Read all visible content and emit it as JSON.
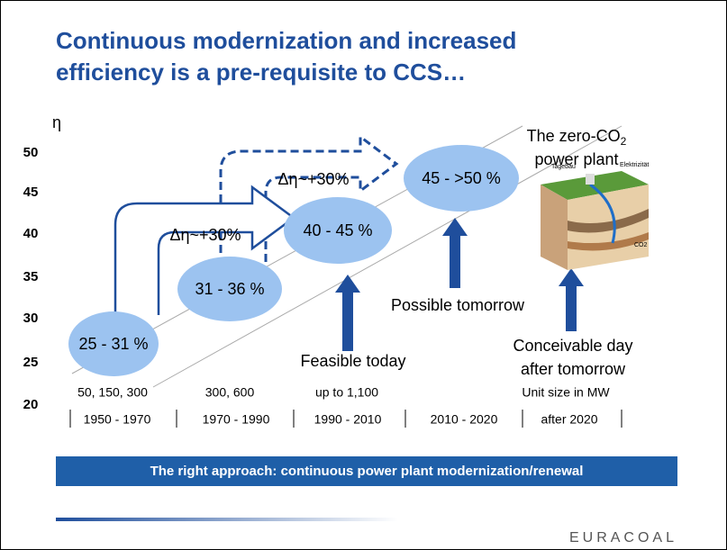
{
  "header": {
    "title": [
      "Continuous modernization and increased",
      "efficiency is a pre-requisite to CCS…"
    ]
  },
  "axis": {
    "label": "η",
    "ticks": [
      "50",
      "45",
      "40",
      "35",
      "30",
      "25",
      "20"
    ]
  },
  "stages": [
    {
      "efficiency": "25 - 31 %",
      "unit_size": "50, 150, 300",
      "period": "1950 - 1970"
    },
    {
      "efficiency": "31 - 36 %",
      "unit_size": "300, 600",
      "period": "1970 - 1990"
    },
    {
      "efficiency": "40 - 45 %",
      "unit_size": "up to 1,100",
      "period": "1990 - 2010"
    },
    {
      "efficiency": "45 - >50 %",
      "period": "2010 - 2020"
    },
    {
      "unit_size": "Unit size in MW",
      "period": "after 2020"
    }
  ],
  "gains": [
    "Δη~+30%",
    "Δη~+30%"
  ],
  "outlooks": [
    "Feasible today",
    "Possible tomorrow",
    [
      "Conceivable day",
      "after tomorrow"
    ]
  ],
  "zero_co2": {
    "line1": "The zero-CO",
    "subscript": "2",
    "line2": "power plant",
    "labels": [
      "Tagebau",
      "Elektrizität",
      "CO2"
    ]
  },
  "banner": "The right approach: continuous power plant modernization/renewal",
  "logo": "EURACOAL"
}
